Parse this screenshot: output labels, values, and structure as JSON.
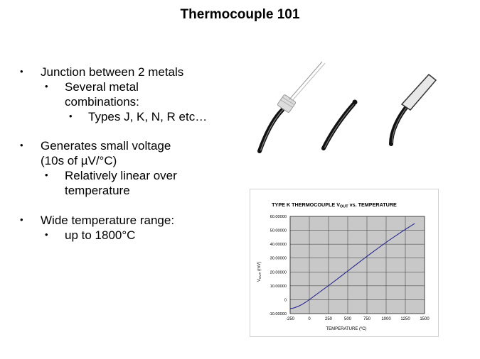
{
  "slide": {
    "title": "Thermocouple 101",
    "bullets": [
      {
        "level": 1,
        "lines": [
          "Junction between 2 metals"
        ]
      },
      {
        "level": 2,
        "lines": [
          "Several metal",
          "combinations:"
        ]
      },
      {
        "level": 3,
        "lines": [
          "Types J, K, N, R etc…"
        ]
      },
      {
        "level": 1,
        "lines": [
          "Generates small voltage",
          "(10s of µV/°C)"
        ]
      },
      {
        "level": 2,
        "lines": [
          "Relatively linear over",
          "temperature"
        ]
      },
      {
        "level": 1,
        "lines": [
          "Wide temperature range:"
        ]
      },
      {
        "level": 2,
        "lines": [
          "up to 1800°C"
        ]
      }
    ],
    "bullet_symbol": "•"
  },
  "images": {
    "thermocouple_probes": [
      "exposed-wire probe",
      "bead probe",
      "sheathed probe"
    ]
  },
  "chart_data": {
    "type": "line",
    "title_main": "TYPE K THERMOCOUPLE V",
    "title_sub": "OUT",
    "title_tail": " vs. TEMPERATURE",
    "xlabel": "TEMPERATURE (ºC)",
    "ylabel_main": "V",
    "ylabel_sub": "OUT",
    "ylabel_tail": " (mV)",
    "xlim": [
      -250,
      1500
    ],
    "ylim": [
      -10,
      60
    ],
    "x_ticks": [
      "-250",
      "0",
      "250",
      "500",
      "750",
      "1000",
      "1250",
      "1500"
    ],
    "y_ticks": [
      "60.00000",
      "50.00000",
      "40.00000",
      "30.00000",
      "20.00000",
      "10.00000",
      "0",
      "-10.00000"
    ],
    "grid": true,
    "plot_bg": "#c8c8c8",
    "line_color": "#1a1a8c",
    "series": [
      {
        "x": [
          -250,
          -200,
          -150,
          -100,
          -50,
          0,
          100,
          200,
          300,
          400,
          500,
          600,
          700,
          800,
          900,
          1000,
          1100,
          1200,
          1300,
          1372
        ],
        "y": [
          -6.4,
          -5.89,
          -4.91,
          -3.55,
          -1.89,
          0.0,
          4.1,
          8.14,
          12.21,
          16.4,
          20.64,
          24.91,
          29.13,
          33.28,
          37.33,
          41.28,
          45.12,
          48.84,
          52.41,
          54.89
        ]
      }
    ]
  },
  "colors": {
    "background": "#ffffff",
    "text": "#000000"
  }
}
